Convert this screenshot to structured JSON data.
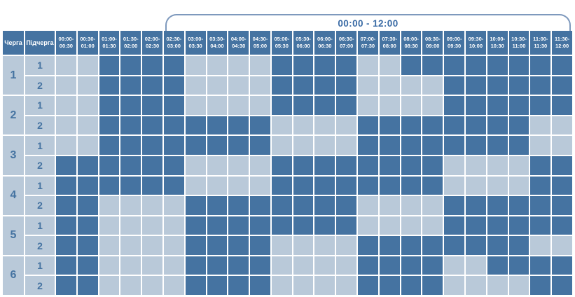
{
  "header": {
    "title": "00:00 - 12:00"
  },
  "table": {
    "corner_headers": [
      "Черга",
      "Підчерга"
    ],
    "groups": [
      {
        "queue": "1",
        "subqueues": [
          "1",
          "2"
        ]
      },
      {
        "queue": "2",
        "subqueues": [
          "1",
          "2"
        ]
      },
      {
        "queue": "3",
        "subqueues": [
          "1",
          "2"
        ]
      },
      {
        "queue": "4",
        "subqueues": [
          "1",
          "2"
        ]
      },
      {
        "queue": "5",
        "subqueues": [
          "1",
          "2"
        ]
      },
      {
        "queue": "6",
        "subqueues": [
          "1",
          "2"
        ]
      }
    ]
  },
  "colors": {
    "cell_on": "#4573A1",
    "cell_off": "#B9C9D9",
    "header_bg": "#4573A1",
    "header_text": "#FFFFFF",
    "label_text": "#4573A1",
    "bracket_line": "#7E99BD",
    "title_text": "#3A6BA5",
    "grid_lines": "#FFFFFF"
  },
  "chart_data": {
    "type": "heatmap",
    "title": "00:00 - 12:00",
    "x_labels": [
      "00:00-00:30",
      "00:30-01:00",
      "01:00-01:30",
      "01:30-02:00",
      "02:00-02:30",
      "02:30-03:00",
      "03:00-03:30",
      "03:30-04:00",
      "04:00-04:30",
      "04:30-05:00",
      "05:00-05:30",
      "05:30-06:00",
      "06:00-06:30",
      "06:30-07:00",
      "07:00-07:30",
      "07:30-08:00",
      "08:00-08:30",
      "08:30-09:00",
      "09:00-09:30",
      "09:30-10:00",
      "10:00-10:30",
      "10:30-11:00",
      "11:00-11:30",
      "11:30-12:00"
    ],
    "y_axis": {
      "queue_header": "Черга",
      "subqueue_header": "Підчерга"
    },
    "value_legend": {
      "1": "dark-blue filled slot",
      "0": "light-blue empty slot"
    },
    "rows": [
      {
        "queue": "1",
        "subqueue": "1",
        "values": [
          0,
          0,
          1,
          1,
          1,
          1,
          0,
          0,
          0,
          0,
          1,
          1,
          1,
          1,
          0,
          0,
          1,
          1,
          1,
          1,
          1,
          1,
          1,
          1
        ]
      },
      {
        "queue": "1",
        "subqueue": "2",
        "values": [
          0,
          0,
          1,
          1,
          1,
          1,
          0,
          0,
          0,
          0,
          1,
          1,
          1,
          1,
          0,
          0,
          0,
          0,
          1,
          1,
          1,
          1,
          1,
          1
        ]
      },
      {
        "queue": "2",
        "subqueue": "1",
        "values": [
          0,
          0,
          1,
          1,
          1,
          1,
          0,
          0,
          0,
          0,
          1,
          1,
          1,
          1,
          0,
          0,
          0,
          0,
          1,
          1,
          1,
          1,
          1,
          1
        ]
      },
      {
        "queue": "2",
        "subqueue": "2",
        "values": [
          0,
          0,
          1,
          1,
          1,
          1,
          1,
          1,
          1,
          1,
          0,
          0,
          0,
          0,
          1,
          1,
          1,
          1,
          1,
          1,
          1,
          1,
          0,
          0
        ]
      },
      {
        "queue": "3",
        "subqueue": "1",
        "values": [
          0,
          0,
          1,
          1,
          1,
          1,
          1,
          1,
          1,
          1,
          0,
          0,
          0,
          0,
          1,
          1,
          1,
          1,
          1,
          1,
          1,
          1,
          0,
          0
        ]
      },
      {
        "queue": "3",
        "subqueue": "2",
        "values": [
          1,
          1,
          1,
          1,
          1,
          1,
          0,
          0,
          0,
          0,
          1,
          1,
          1,
          1,
          1,
          1,
          1,
          1,
          0,
          0,
          0,
          0,
          1,
          1
        ]
      },
      {
        "queue": "4",
        "subqueue": "1",
        "values": [
          1,
          1,
          1,
          1,
          1,
          1,
          0,
          0,
          0,
          0,
          1,
          1,
          1,
          1,
          1,
          1,
          1,
          1,
          0,
          0,
          0,
          0,
          1,
          1
        ]
      },
      {
        "queue": "4",
        "subqueue": "2",
        "values": [
          1,
          1,
          0,
          0,
          0,
          0,
          1,
          1,
          1,
          1,
          1,
          1,
          1,
          1,
          0,
          0,
          0,
          0,
          1,
          1,
          1,
          1,
          1,
          1
        ]
      },
      {
        "queue": "5",
        "subqueue": "1",
        "values": [
          1,
          1,
          0,
          0,
          0,
          0,
          1,
          1,
          1,
          1,
          1,
          1,
          1,
          1,
          0,
          0,
          0,
          0,
          1,
          1,
          1,
          1,
          1,
          1
        ]
      },
      {
        "queue": "5",
        "subqueue": "2",
        "values": [
          1,
          1,
          0,
          0,
          0,
          0,
          1,
          1,
          1,
          1,
          0,
          0,
          0,
          0,
          1,
          1,
          1,
          1,
          1,
          1,
          1,
          1,
          0,
          0
        ]
      },
      {
        "queue": "6",
        "subqueue": "1",
        "values": [
          1,
          1,
          0,
          0,
          0,
          0,
          1,
          1,
          1,
          1,
          0,
          0,
          0,
          0,
          1,
          1,
          1,
          1,
          0,
          0,
          1,
          1,
          1,
          1
        ]
      },
      {
        "queue": "6",
        "subqueue": "2",
        "values": [
          1,
          1,
          0,
          0,
          0,
          0,
          1,
          1,
          1,
          1,
          0,
          0,
          0,
          0,
          1,
          1,
          1,
          1,
          0,
          0,
          0,
          0,
          1,
          1
        ]
      }
    ]
  }
}
